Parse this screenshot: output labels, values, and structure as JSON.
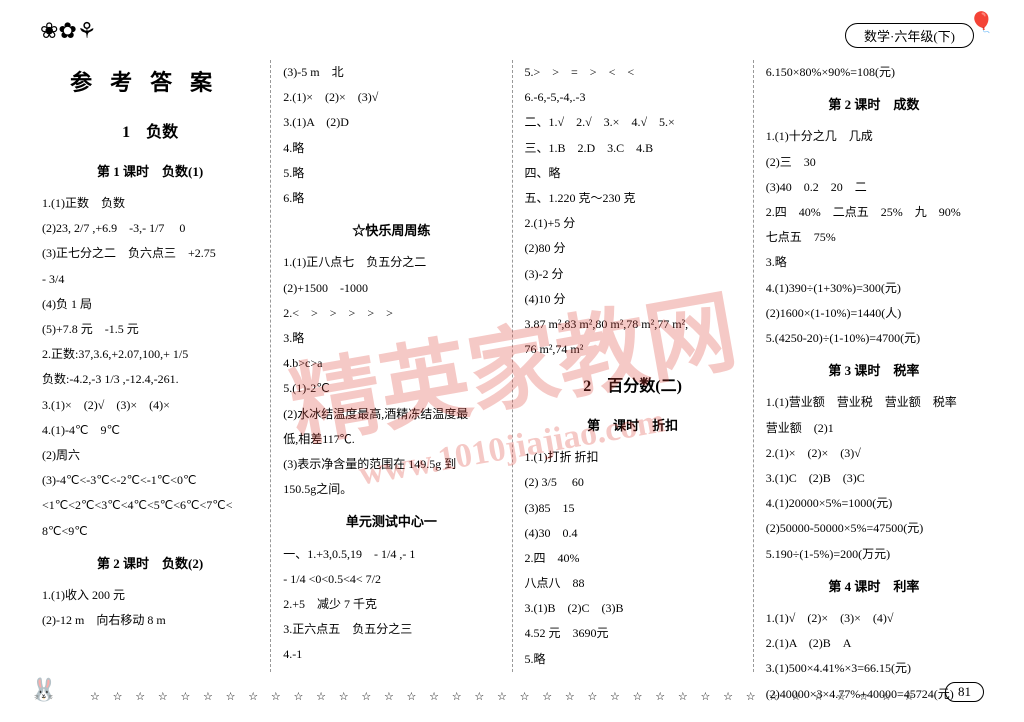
{
  "header": {
    "decoration": "❀✿⚘",
    "subject": "数学·六年级(下)",
    "balloon": "🎈"
  },
  "titles": {
    "main": "参考答案",
    "unit1": "1　负数",
    "lesson1_1": "第 1 课时　负数(1)",
    "lesson1_2": "第 2 课时　负数(2)",
    "weekly": "☆快乐周周练",
    "test1": "单元测试中心一",
    "unit2": "2　百分数(二)",
    "lesson2_1": "第　课时　折扣",
    "lesson2_2": "第 2 课时　成数",
    "lesson2_3": "第 3 课时　税率",
    "lesson2_4": "第 4 课时　利率"
  },
  "col1": {
    "l1": "1.(1)正数　负数",
    "l2": "(2)23, 2/7 ,+6.9　-3,- 1/7 　0",
    "l3": "(3)正七分之二　负六点三　+2.75",
    "l4": "- 3/4",
    "l5": "(4)负 1 局",
    "l6": "(5)+7.8 元　-1.5 元",
    "l7": "2.正数:37,3.6,+2.07,100,+ 1/5",
    "l8": "负数:-4.2,-3 1/3 ,-12.4,-261.",
    "l9": "3.(1)×　(2)√　(3)×　(4)×",
    "l10": "4.(1)-4℃　9℃",
    "l11": "(2)周六",
    "l12": "(3)-4℃<-3℃<-2℃<-1℃<0℃",
    "l13": "<1℃<2℃<3℃<4℃<5℃<6℃<7℃<",
    "l14": "8℃<9℃",
    "l15": "1.(1)收入 200 元",
    "l16": "(2)-12 m　向右移动 8 m"
  },
  "col2": {
    "l1": "(3)-5 m　北",
    "l2": "2.(1)×　(2)×　(3)√",
    "l3": "3.(1)A　(2)D",
    "l4": "4.略",
    "l5": "5.略",
    "l6": "6.略",
    "l7": "1.(1)正八点七　负五分之二",
    "l8": "(2)+1500　-1000",
    "l9": "2.<　>　>　>　>　>",
    "l10": "3.略",
    "l11": "4.b>c>a",
    "l12": "5.(1)-2℃",
    "l13": "(2)水冰结温度最高,酒精冻结温度最",
    "l14": "低,相差117℃.",
    "l15": "(3)表示净含量的范围在 149.5g 到",
    "l16": "150.5g之间。",
    "l17": "一、1.+3,0.5,19　- 1/4 ,- 1",
    "l18": "- 1/4 <0<0.5<4< 7/2",
    "l19": "2.+5　减少 7 千克",
    "l20": "3.正六点五　负五分之三",
    "l21": "4.-1"
  },
  "col3": {
    "l1": "5.>　>　=　>　<　<",
    "l2": "6.-6,-5,-4,.-3",
    "l3": "二、1.√　2.√　3.×　4.√　5.×",
    "l4": "三、1.B　2.D　3.C　4.B",
    "l5": "四、略",
    "l6": "五、1.220 克～230 克",
    "l7": "2.(1)+5 分",
    "l8": "(2)80 分",
    "l9": "(3)-2 分",
    "l10": "(4)10 分",
    "l11": "3.87 m²,83 m²,80 m²,78 m²,77 m²,",
    "l12": "76 m²,74 m²",
    "l13": "1.(1)打折 折扣",
    "l14": "(2) 3/5 　60",
    "l15": "(3)85　15",
    "l16": "(4)30　0.4",
    "l17": "2.四　40%　　　　　　　　",
    "l18": "八点八　88",
    "l19": "3.(1)B　(2)C　(3)B",
    "l20": "4.52 元　3690元",
    "l21": "5.略"
  },
  "col4": {
    "l1": "6.150×80%×90%=108(元)",
    "l2": "1.(1)十分之几　几成",
    "l3": "(2)三　30",
    "l4": "(3)40　0.2　20　二",
    "l5": "2.四　40%　二点五　25%　九　90%",
    "l6": "七点五　75%",
    "l7": "3.略",
    "l8": "4.(1)390÷(1+30%)=300(元)",
    "l9": "(2)1600×(1-10%)=1440(人)",
    "l10": "5.(4250-20)÷(1-10%)=4700(元)",
    "l11": "1.(1)营业额　营业税　营业额　税率",
    "l12": "营业额　(2)1",
    "l13": "2.(1)×　(2)×　(3)√",
    "l14": "3.(1)C　(2)B　(3)C",
    "l15": "4.(1)20000×5%=1000(元)",
    "l16": "(2)50000-50000×5%=47500(元)",
    "l17": "5.190÷(1-5%)=200(万元)",
    "l18": "1.(1)√　(2)×　(3)×　(4)√",
    "l19": "2.(1)A　(2)B　A",
    "l20": "3.(1)500×4.41%×3=66.15(元)",
    "l21": "(2)40000×3×4.77%+40000=45724(元)"
  },
  "footer": {
    "rabbit": "🐰",
    "stars": "☆ ☆ ☆ ☆ ☆ ☆ ☆ ☆ ☆ ☆ ☆ ☆ ☆ ☆ ☆ ☆ ☆ ☆ ☆ ☆ ☆ ☆ ☆ ☆ ☆ ☆ ☆ ☆ ☆ ☆ ☆ ☆ ☆ ☆ ☆ ☆ ☆ ☆ ☆ ☆ ☆ ☆ ☆",
    "page": "81"
  },
  "watermark": {
    "text1": "精英家教网",
    "text2": "www.1010jiajiao.com"
  }
}
